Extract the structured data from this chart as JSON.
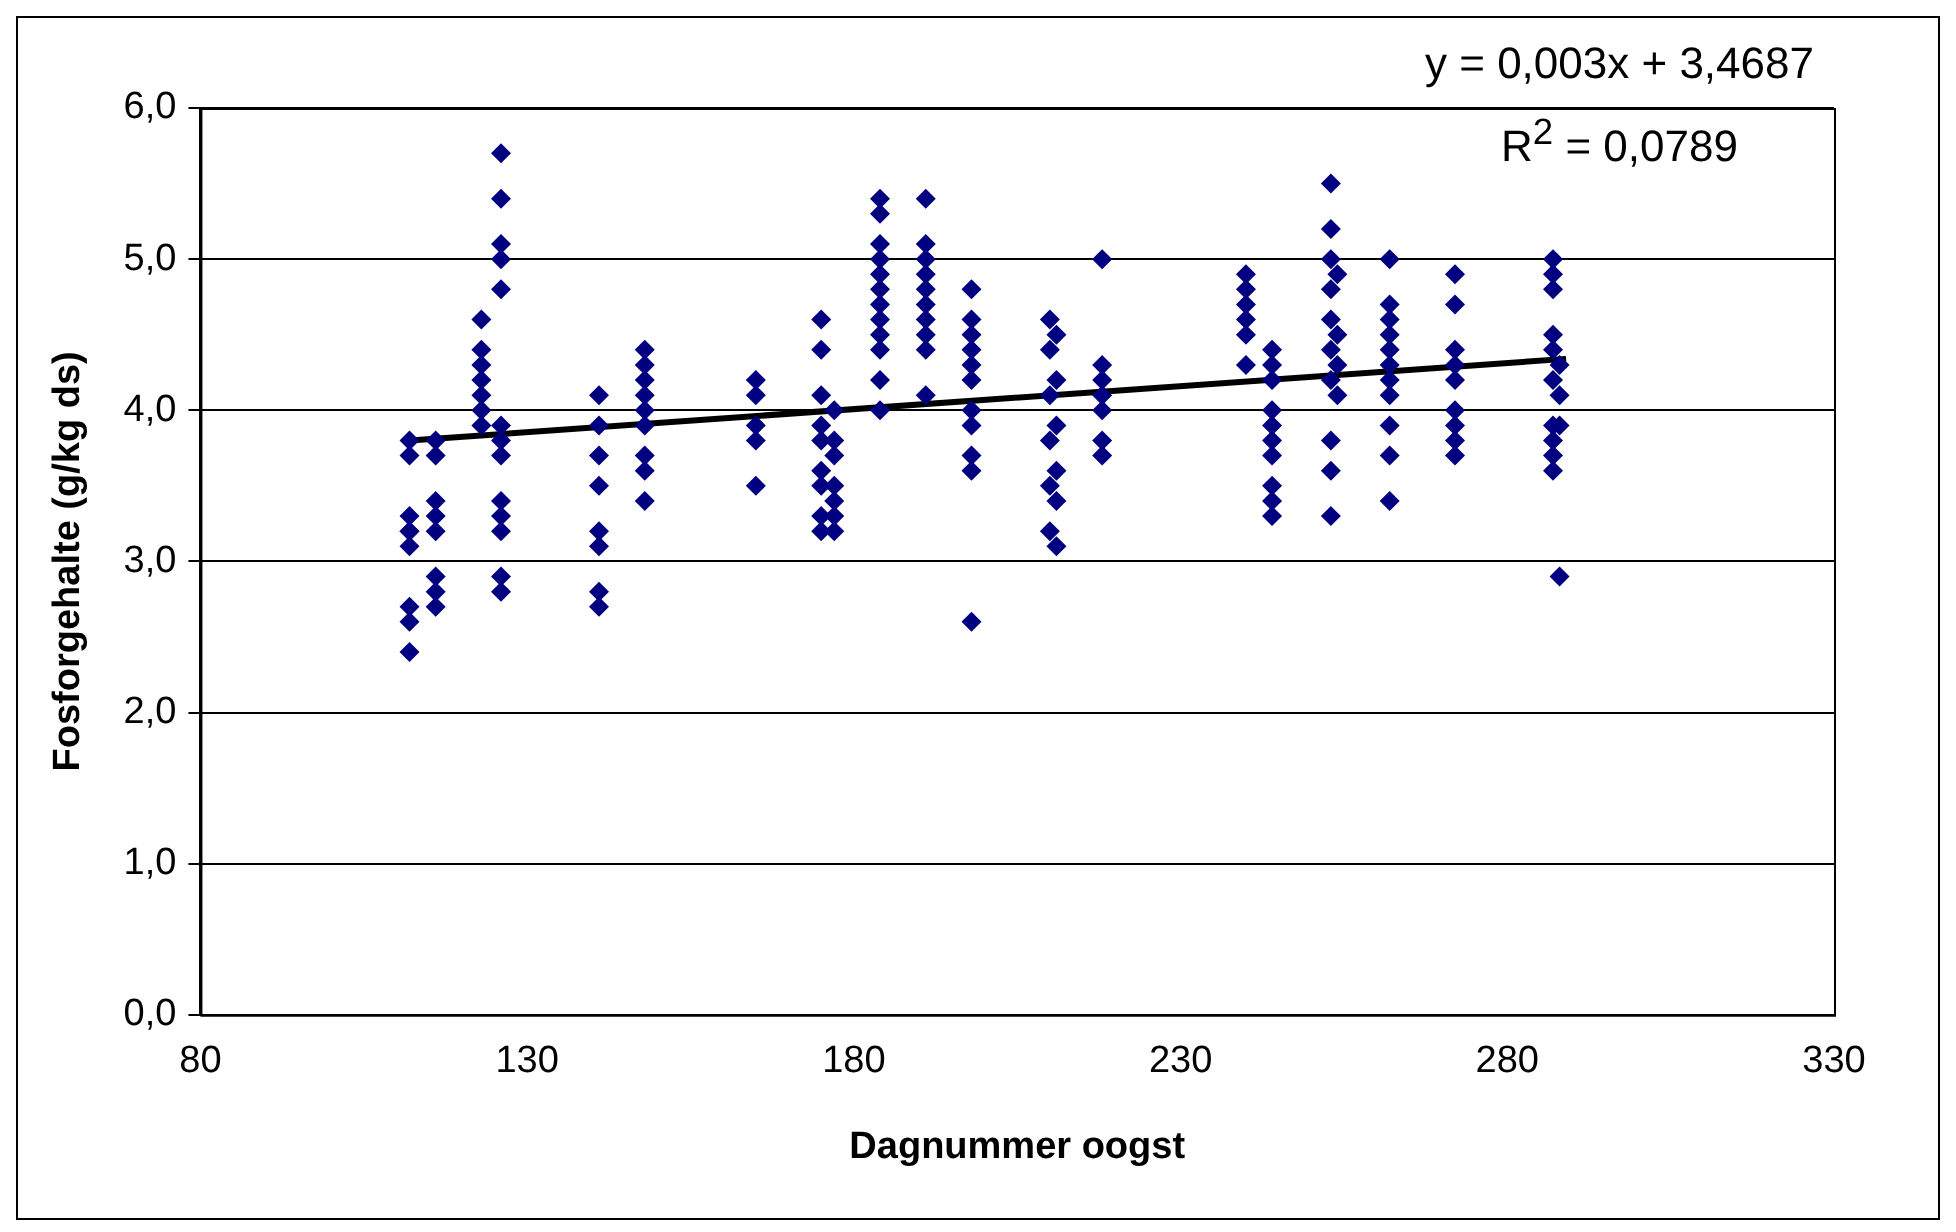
{
  "chart_data": {
    "type": "scatter",
    "xlabel": "Dagnummer oogst",
    "ylabel": "Fosforgehalte (g/kg ds)",
    "xlim": [
      80,
      330
    ],
    "xticks": [
      80,
      130,
      180,
      230,
      280,
      330
    ],
    "ylim": [
      0,
      6
    ],
    "yticks": [
      {
        "value": 0,
        "label": "0,0"
      },
      {
        "value": 1,
        "label": "1,0"
      },
      {
        "value": 2,
        "label": "2,0"
      },
      {
        "value": 3,
        "label": "3,0"
      },
      {
        "value": 4,
        "label": "4,0"
      },
      {
        "value": 5,
        "label": "5,0"
      },
      {
        "value": 6,
        "label": "6,0"
      }
    ],
    "grid": "y",
    "marker": "diamond",
    "legend": false,
    "annotations": [
      "y = 0,003x + 3,4687",
      "R$^{2}$ = 0,0789"
    ],
    "series": [
      {
        "color": "#000080",
        "x": [
          112,
          112,
          112,
          112,
          112,
          112,
          112,
          112,
          112,
          116,
          116,
          116,
          116,
          116,
          116,
          116,
          116,
          123,
          123,
          123,
          123,
          123,
          123,
          123,
          126,
          126,
          126,
          126,
          126,
          126,
          126,
          126,
          126,
          126,
          126,
          126,
          126,
          141,
          141,
          141,
          141,
          141,
          141,
          141,
          141,
          148,
          148,
          148,
          148,
          148,
          148,
          148,
          148,
          148,
          165,
          165,
          165,
          165,
          165,
          175,
          175,
          175,
          177,
          175,
          177,
          175,
          177,
          175,
          177,
          175,
          177,
          175,
          177,
          175,
          177,
          184,
          184,
          184,
          184,
          184,
          184,
          184,
          184,
          184,
          184,
          184,
          184,
          191,
          191,
          191,
          191,
          191,
          191,
          191,
          191,
          191,
          191,
          198,
          198,
          198,
          198,
          198,
          198,
          198,
          198,
          198,
          198,
          198,
          210,
          211,
          210,
          211,
          210,
          211,
          210,
          211,
          210,
          211,
          210,
          211,
          218,
          218,
          218,
          218,
          218,
          218,
          218,
          240,
          240,
          240,
          240,
          240,
          240,
          244,
          244,
          244,
          244,
          244,
          244,
          244,
          244,
          244,
          244,
          253,
          253,
          253,
          253,
          253,
          253,
          253,
          253,
          253,
          253,
          254,
          254,
          254,
          254,
          262,
          262,
          262,
          262,
          262,
          262,
          262,
          262,
          262,
          262,
          262,
          272,
          272,
          272,
          272,
          272,
          272,
          272,
          272,
          272,
          287,
          287,
          287,
          287,
          287,
          287,
          287,
          287,
          287,
          287,
          288,
          288,
          288,
          288
        ],
        "values": [
          3.8,
          3.7,
          3.3,
          3.2,
          3.2,
          3.1,
          2.7,
          2.6,
          2.4,
          3.8,
          3.7,
          3.4,
          3.3,
          3.2,
          2.9,
          2.8,
          2.7,
          4.6,
          4.4,
          4.3,
          4.2,
          4.1,
          4.0,
          3.9,
          5.7,
          5.4,
          5.1,
          5.0,
          4.8,
          3.9,
          3.8,
          3.7,
          3.4,
          3.3,
          3.2,
          2.9,
          2.8,
          4.1,
          3.9,
          3.7,
          3.5,
          3.2,
          3.1,
          2.8,
          2.7,
          4.4,
          4.3,
          4.2,
          4.1,
          4.0,
          3.9,
          3.7,
          3.6,
          3.4,
          4.2,
          4.1,
          3.9,
          3.8,
          3.5,
          4.6,
          4.4,
          4.1,
          4.0,
          3.9,
          3.8,
          3.8,
          3.7,
          3.6,
          3.5,
          3.5,
          3.4,
          3.3,
          3.3,
          3.2,
          3.2,
          5.4,
          5.3,
          5.1,
          5.0,
          4.9,
          4.8,
          4.7,
          4.6,
          4.5,
          4.4,
          4.2,
          4.0,
          5.4,
          5.1,
          5.0,
          4.9,
          4.8,
          4.7,
          4.6,
          4.5,
          4.4,
          4.1,
          4.8,
          4.6,
          4.5,
          4.4,
          4.3,
          4.2,
          4.0,
          3.9,
          3.7,
          3.6,
          2.6,
          4.6,
          4.5,
          4.4,
          4.2,
          4.1,
          3.9,
          3.8,
          3.6,
          3.5,
          3.4,
          3.2,
          3.1,
          5.0,
          4.3,
          4.2,
          4.1,
          4.0,
          3.8,
          3.7,
          4.9,
          4.8,
          4.7,
          4.6,
          4.5,
          4.3,
          4.4,
          4.3,
          4.2,
          4.0,
          3.9,
          3.8,
          3.7,
          3.5,
          3.4,
          3.3,
          5.5,
          5.2,
          5.0,
          4.8,
          4.6,
          4.4,
          4.2,
          3.8,
          3.6,
          3.3,
          4.9,
          4.5,
          4.3,
          4.1,
          5.0,
          4.7,
          4.6,
          4.5,
          4.4,
          4.3,
          4.2,
          4.1,
          3.9,
          3.7,
          3.4,
          4.9,
          4.7,
          4.4,
          4.3,
          4.2,
          4.0,
          3.9,
          3.8,
          3.7,
          5.0,
          4.9,
          4.8,
          4.5,
          4.4,
          4.2,
          3.9,
          3.8,
          3.7,
          3.6,
          4.3,
          4.1,
          3.9,
          2.9
        ]
      },
      {
        "type": "line",
        "color": "#000000",
        "marker": "none",
        "x": [
          112,
          289
        ],
        "values": [
          3.8,
          4.34
        ]
      }
    ]
  }
}
